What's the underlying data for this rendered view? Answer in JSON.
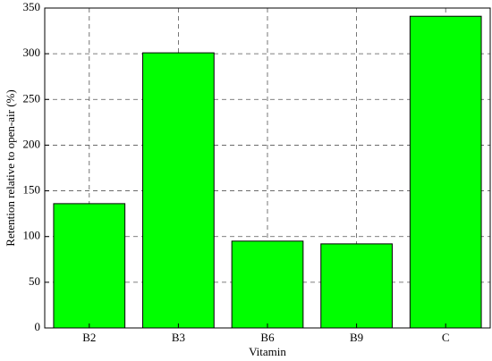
{
  "chart_data": {
    "type": "bar",
    "x_label": "Vitamin",
    "y_label": "Retention relative to open-air (%)",
    "categories": [
      "B2",
      "B3",
      "B6",
      "B9",
      "C"
    ],
    "values": [
      136,
      301,
      95,
      92,
      341
    ],
    "color": "#00ff00",
    "ylim": [
      0,
      350
    ],
    "yticks": [
      0,
      50,
      100,
      150,
      200,
      250,
      300,
      350
    ],
    "grid": true
  }
}
